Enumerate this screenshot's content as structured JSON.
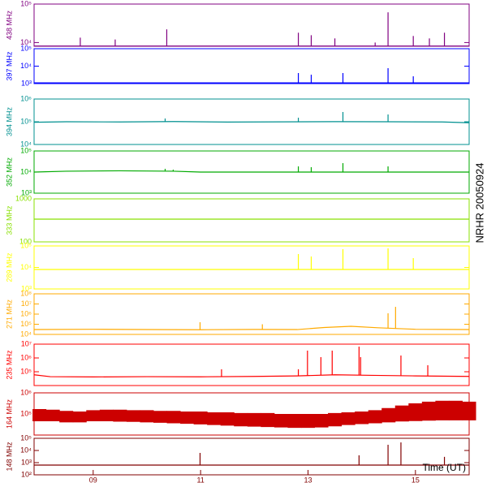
{
  "annotation": "NRHR 20050924",
  "chart_data": [
    {
      "type": "line",
      "y_label": "438 MHz",
      "color": "#800080",
      "log_scale": true,
      "xlim": [
        7.9,
        16
      ],
      "ylim": [
        8000,
        100000
      ],
      "yticks": [
        {
          "value": 10000,
          "label": "10⁴"
        },
        {
          "value": 100000,
          "label": "10⁵"
        }
      ],
      "x": [
        7.9,
        16
      ],
      "values": [
        8100,
        8100
      ],
      "spike_x": [
        8.76,
        9.41,
        10.37,
        12.82,
        13.06,
        13.5,
        14.25,
        14.49,
        14.96,
        15.26,
        15.54
      ],
      "spike_values": [
        13400,
        12000,
        22000,
        18000,
        15500,
        12800,
        10000,
        61000,
        14800,
        12800,
        18000
      ]
    },
    {
      "type": "line",
      "y_label": "397 MHz",
      "color": "#0000ff",
      "log_scale": true,
      "xlim": [
        7.9,
        16
      ],
      "ylim": [
        1000,
        100000
      ],
      "yticks": [
        {
          "value": 1000,
          "label": "10³"
        },
        {
          "value": 10000,
          "label": "10⁴"
        },
        {
          "value": 100000,
          "label": "10⁵"
        }
      ],
      "x": [
        7.9,
        16
      ],
      "values": [
        1100,
        1100
      ],
      "spike_x": [
        12.82,
        13.06,
        13.65,
        14.49,
        14.96
      ],
      "spike_values": [
        4030,
        3250,
        4030,
        7640,
        2620
      ]
    },
    {
      "type": "line",
      "y_label": "394 MHz",
      "color": "#009090",
      "log_scale": true,
      "xlim": [
        7.9,
        16
      ],
      "ylim": [
        10000,
        1000000
      ],
      "yticks": [
        {
          "value": 10000,
          "label": "10⁴"
        },
        {
          "value": 100000,
          "label": "10⁵"
        },
        {
          "value": 1000000,
          "label": "10⁶"
        }
      ],
      "x": [
        7.9,
        8.5,
        9.5,
        10.5,
        11.5,
        12.5,
        13.5,
        14.5,
        15.5,
        16
      ],
      "values": [
        95000,
        100000,
        98000,
        102000,
        97000,
        99000,
        101000,
        100000,
        98000,
        90000
      ],
      "spike_x": [
        10.34,
        12.82,
        13.65,
        14.49
      ],
      "spike_values": [
        139000,
        151000,
        268000,
        209000
      ]
    },
    {
      "type": "line",
      "y_label": "352 MHz",
      "color": "#00aa00",
      "log_scale": true,
      "xlim": [
        7.9,
        16
      ],
      "ylim": [
        1000,
        100000
      ],
      "yticks": [
        {
          "value": 1000,
          "label": "10³"
        },
        {
          "value": 10000,
          "label": "10⁴"
        },
        {
          "value": 100000,
          "label": "10⁵"
        }
      ],
      "x": [
        7.9,
        8.5,
        9.5,
        10.5,
        11,
        16
      ],
      "values": [
        10000,
        11000,
        11500,
        11000,
        10000,
        10000
      ],
      "spike_x": [
        10.34,
        10.49,
        12.82,
        13.06,
        13.65,
        14.49
      ],
      "spike_values": [
        14300,
        13000,
        18600,
        17000,
        26500,
        18600
      ]
    },
    {
      "type": "line",
      "y_label": "333 MHz",
      "color": "#88e000",
      "log_scale": true,
      "xlim": [
        7.9,
        16
      ],
      "ylim": [
        100,
        1000
      ],
      "yticks": [
        100,
        1000
      ],
      "x": [
        7.9,
        16
      ],
      "values": [
        338,
        338
      ],
      "spike_x": [],
      "spike_values": []
    },
    {
      "type": "line",
      "y_label": "289 MHz",
      "color": "#ffff00",
      "log_scale": true,
      "xlim": [
        7.9,
        16
      ],
      "ylim": [
        1000,
        100000
      ],
      "yticks": [
        {
          "value": 1000,
          "label": "10³"
        },
        {
          "value": 10000,
          "label": "10⁴"
        },
        {
          "value": 100000,
          "label": "10⁵"
        }
      ],
      "x": [
        7.9,
        16
      ],
      "values": [
        8050,
        8050
      ],
      "spike_x": [
        12.82,
        13.06,
        13.65,
        14.49,
        14.96
      ],
      "spike_values": [
        42000,
        32300,
        70600,
        77000,
        27200
      ]
    },
    {
      "type": "line",
      "y_label": "271 MHz",
      "color": "#ffaa00",
      "log_scale": true,
      "xlim": [
        7.9,
        16
      ],
      "ylim": [
        10000,
        100000000
      ],
      "yticks": [
        {
          "value": 10000,
          "label": "10⁴"
        },
        {
          "value": 100000,
          "label": "10⁵"
        },
        {
          "value": 1000000,
          "label": "10⁶"
        },
        {
          "value": 10000000,
          "label": "10⁷"
        },
        {
          "value": 100000000,
          "label": "10⁸"
        }
      ],
      "x": [
        7.9,
        9,
        10,
        11,
        12,
        12.8,
        13.3,
        13.8,
        14.3,
        15,
        16
      ],
      "values": [
        30000,
        32000,
        30000,
        29000,
        31000,
        30000,
        48000,
        63000,
        45000,
        32000,
        30000
      ],
      "spike_x": [
        10.99,
        12.15,
        14.49,
        14.63
      ],
      "spike_values": [
        158000,
        100000,
        1200000,
        5200000
      ]
    },
    {
      "type": "line",
      "y_label": "235 MHz",
      "color": "#ff0000",
      "log_scale": true,
      "xlim": [
        7.9,
        16
      ],
      "ylim": [
        10000,
        10000000
      ],
      "yticks": [
        {
          "value": 100000,
          "label": "10⁵"
        },
        {
          "value": 1000000,
          "label": "10⁶"
        },
        {
          "value": 10000000,
          "label": "10⁷"
        }
      ],
      "x": [
        7.9,
        8.2,
        9,
        10,
        11,
        12,
        12.8,
        13.5,
        14.2,
        15,
        16
      ],
      "values": [
        60000,
        44000,
        42000,
        44000,
        43000,
        46000,
        50000,
        60000,
        55000,
        50000,
        46000
      ],
      "spike_x": [
        11.39,
        12.82,
        12.99,
        13.24,
        13.45,
        13.95,
        13.98,
        14.73,
        15.23
      ],
      "spike_values": [
        150000,
        150000,
        3400000,
        1150000,
        3400000,
        6600000,
        1150000,
        1500000,
        296000
      ]
    },
    {
      "type": "band",
      "y_label": "164 MHz",
      "color": "#cc0000",
      "log_scale": true,
      "xlim": [
        7.9,
        16
      ],
      "ylim": [
        10000,
        1000000
      ],
      "yticks": [
        {
          "value": 100000,
          "label": "10⁵"
        },
        {
          "value": 1000000,
          "label": "10⁶"
        }
      ],
      "x": [
        8,
        8.25,
        8.5,
        8.75,
        9,
        9.25,
        9.5,
        9.75,
        10,
        10.25,
        10.5,
        10.75,
        11,
        11.25,
        11.5,
        11.75,
        12,
        12.25,
        12.5,
        12.75,
        13,
        13.25,
        13.5,
        13.75,
        14,
        14.25,
        14.5,
        14.75,
        15,
        15.25,
        15.5,
        15.75,
        16
      ],
      "values": [
        170000,
        160000,
        140000,
        130000,
        150000,
        160000,
        160000,
        150000,
        150000,
        140000,
        140000,
        130000,
        130000,
        120000,
        120000,
        110000,
        110000,
        110000,
        100000,
        100000,
        100000,
        100000,
        110000,
        120000,
        130000,
        150000,
        190000,
        250000,
        320000,
        380000,
        420000,
        420000,
        380000
      ],
      "low_values": [
        45000,
        45000,
        40000,
        40000,
        45000,
        45000,
        43000,
        42000,
        40000,
        38000,
        36000,
        34000,
        32000,
        30000,
        28000,
        26000,
        25000,
        24000,
        23000,
        22000,
        22000,
        23000,
        26000,
        30000,
        33000,
        36000,
        40000,
        44000,
        46000,
        48000,
        50000,
        50000,
        50000
      ]
    },
    {
      "type": "line",
      "y_label": "148 MHz",
      "color": "#800000",
      "log_scale": true,
      "xlim": [
        7.9,
        16
      ],
      "ylim": [
        100,
        100000
      ],
      "yticks": [
        {
          "value": 100,
          "label": "10²"
        },
        {
          "value": 1000,
          "label": "10³"
        },
        {
          "value": 10000,
          "label": "10⁴"
        },
        {
          "value": 100000,
          "label": "10⁵"
        }
      ],
      "x": [
        7.9,
        16
      ],
      "values": [
        630,
        630
      ],
      "spike_x": [
        10.99,
        13.95,
        14.49,
        14.73,
        15.54
      ],
      "spike_values": [
        6300,
        4000,
        29500,
        46000,
        3000
      ],
      "xticks": [
        {
          "value": 9,
          "label": "09"
        },
        {
          "value": 11,
          "label": "11"
        },
        {
          "value": 13,
          "label": "13"
        },
        {
          "value": 15,
          "label": "15"
        }
      ],
      "x_label": "Time (UT)"
    }
  ]
}
